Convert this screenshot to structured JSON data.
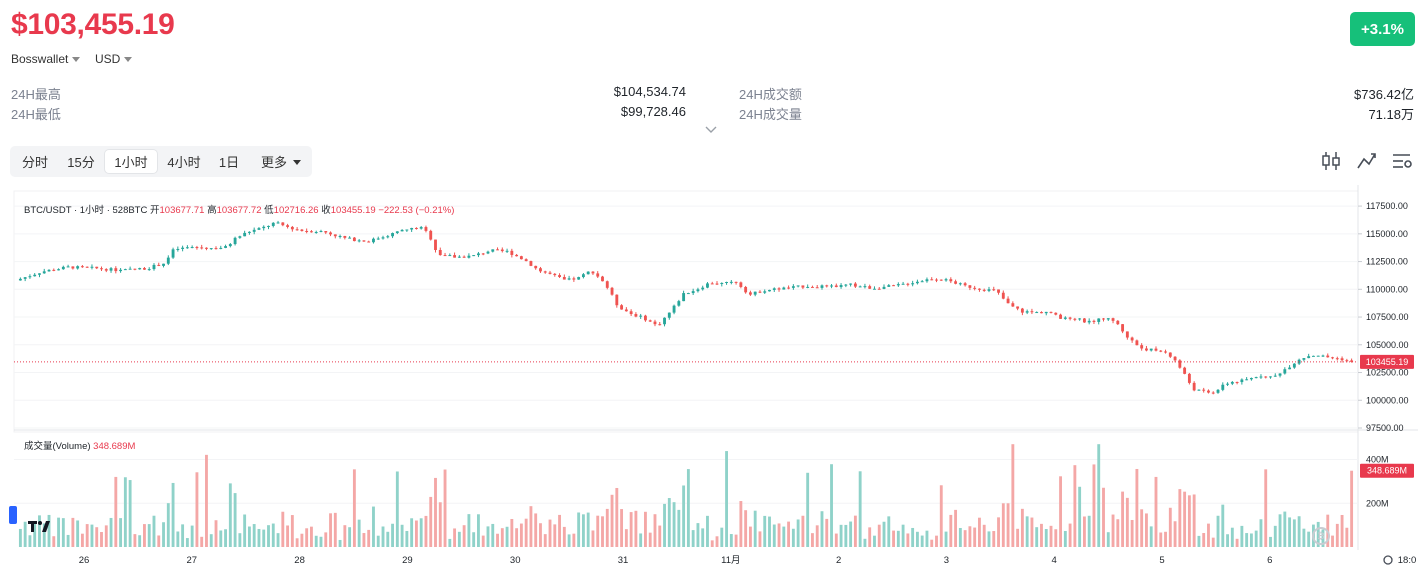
{
  "header": {
    "price": "$103,455.19",
    "change": "+3.1%",
    "source": "Bosswallet",
    "currency": "USD"
  },
  "stats": {
    "high_label": "24H最高",
    "high_value": "$104,534.74",
    "low_label": "24H最低",
    "low_value": "$99,728.46",
    "turnover_label": "24H成交额",
    "turnover_value": "$736.42亿",
    "volume_label": "24H成交量",
    "volume_value": "71.18万"
  },
  "tabs": [
    "分时",
    "15分",
    "1小时",
    "4小时",
    "1日",
    "更多"
  ],
  "active_tab": "1小时",
  "toolbar": [
    "candlestick-settings-icon",
    "indicator-icon",
    "chart-settings-icon"
  ],
  "legend": {
    "symbol": "BTC/USDT · 1小时 · 528BTC",
    "open_label": "开",
    "open": "103677.71",
    "high_label": "高",
    "high": "103677.72",
    "low_label": "低",
    "low": "102716.26",
    "close_label": "收",
    "close": "103455.19",
    "change": "−222.53 (−0.21%)"
  },
  "volume_legend": {
    "label": "成交量(Volume)",
    "value": "348.689M"
  },
  "colors": {
    "up": "#26a69a",
    "down": "#ef5350",
    "up_vol": "#8fd2c9",
    "down_vol": "#f4a7a6",
    "price_tag": "#e8394d",
    "accent": "#16c07a"
  },
  "chart_data": {
    "type": "candlestick",
    "price_axis": {
      "ticks": [
        117500,
        115000,
        112500,
        110000,
        107500,
        105000,
        102500,
        100000,
        97500
      ],
      "tick_labels": [
        "117500.00",
        "115000.00",
        "112500.00",
        "110000.00",
        "107500.00",
        "105000.00",
        "102500.00",
        "100000.00",
        "97500.00"
      ],
      "ylim": [
        97500,
        118500
      ]
    },
    "current_price": 103455.19,
    "current_price_label": "103455.19",
    "volume_axis": {
      "tick_labels": [
        "400M",
        "200M"
      ],
      "ticks": [
        400,
        200
      ],
      "ylim": [
        0,
        480
      ]
    },
    "current_volume_label": "348.689M",
    "current_volume": 348.689,
    "x_axis_labels": [
      "26",
      "27",
      "28",
      "29",
      "30",
      "31",
      "11月",
      "2",
      "3",
      "4",
      "5",
      "6",
      "18:0"
    ],
    "close_path": [
      [
        0,
        110800
      ],
      [
        12,
        111600
      ],
      [
        24,
        112000
      ],
      [
        36,
        111900
      ],
      [
        48,
        111700
      ],
      [
        60,
        111900
      ],
      [
        68,
        112400
      ],
      [
        72,
        113600
      ],
      [
        80,
        113800
      ],
      [
        90,
        113700
      ],
      [
        96,
        113800
      ],
      [
        100,
        114600
      ],
      [
        106,
        115200
      ],
      [
        112,
        115500
      ],
      [
        118,
        116000
      ],
      [
        124,
        115600
      ],
      [
        130,
        115300
      ],
      [
        140,
        115200
      ],
      [
        150,
        114600
      ],
      [
        160,
        114300
      ],
      [
        168,
        114800
      ],
      [
        176,
        115300
      ],
      [
        184,
        115600
      ],
      [
        188,
        115000
      ],
      [
        192,
        113200
      ],
      [
        200,
        112900
      ],
      [
        208,
        113000
      ],
      [
        216,
        113500
      ],
      [
        224,
        113400
      ],
      [
        232,
        112600
      ],
      [
        238,
        111700
      ],
      [
        244,
        111300
      ],
      [
        250,
        110800
      ],
      [
        256,
        111000
      ],
      [
        262,
        111700
      ],
      [
        268,
        110600
      ],
      [
        274,
        108500
      ],
      [
        280,
        107800
      ],
      [
        286,
        107400
      ],
      [
        292,
        106700
      ],
      [
        298,
        108000
      ],
      [
        304,
        109600
      ],
      [
        310,
        110000
      ],
      [
        316,
        110600
      ],
      [
        322,
        110500
      ],
      [
        328,
        110700
      ],
      [
        334,
        109500
      ],
      [
        340,
        109900
      ],
      [
        350,
        110100
      ],
      [
        360,
        110300
      ],
      [
        370,
        110200
      ],
      [
        380,
        110400
      ],
      [
        390,
        110100
      ],
      [
        400,
        110300
      ],
      [
        410,
        110700
      ],
      [
        418,
        111000
      ],
      [
        424,
        110800
      ],
      [
        432,
        110300
      ],
      [
        440,
        110000
      ],
      [
        446,
        109900
      ],
      [
        452,
        108600
      ],
      [
        458,
        108000
      ],
      [
        464,
        107900
      ],
      [
        470,
        108000
      ],
      [
        476,
        107300
      ],
      [
        482,
        107400
      ],
      [
        488,
        107000
      ],
      [
        494,
        107400
      ],
      [
        500,
        107200
      ],
      [
        506,
        105700
      ],
      [
        512,
        104700
      ],
      [
        518,
        104500
      ],
      [
        524,
        104300
      ],
      [
        528,
        103500
      ],
      [
        532,
        102300
      ],
      [
        536,
        101000
      ],
      [
        540,
        100800
      ],
      [
        544,
        100600
      ],
      [
        548,
        101100
      ],
      [
        552,
        101600
      ],
      [
        556,
        101700
      ],
      [
        560,
        101800
      ],
      [
        564,
        102100
      ],
      [
        568,
        102300
      ],
      [
        572,
        102000
      ],
      [
        576,
        102600
      ],
      [
        580,
        103100
      ],
      [
        584,
        103700
      ],
      [
        588,
        104000
      ],
      [
        592,
        104100
      ],
      [
        596,
        103900
      ],
      [
        600,
        103800
      ],
      [
        604,
        103700
      ],
      [
        608,
        103455
      ]
    ]
  }
}
